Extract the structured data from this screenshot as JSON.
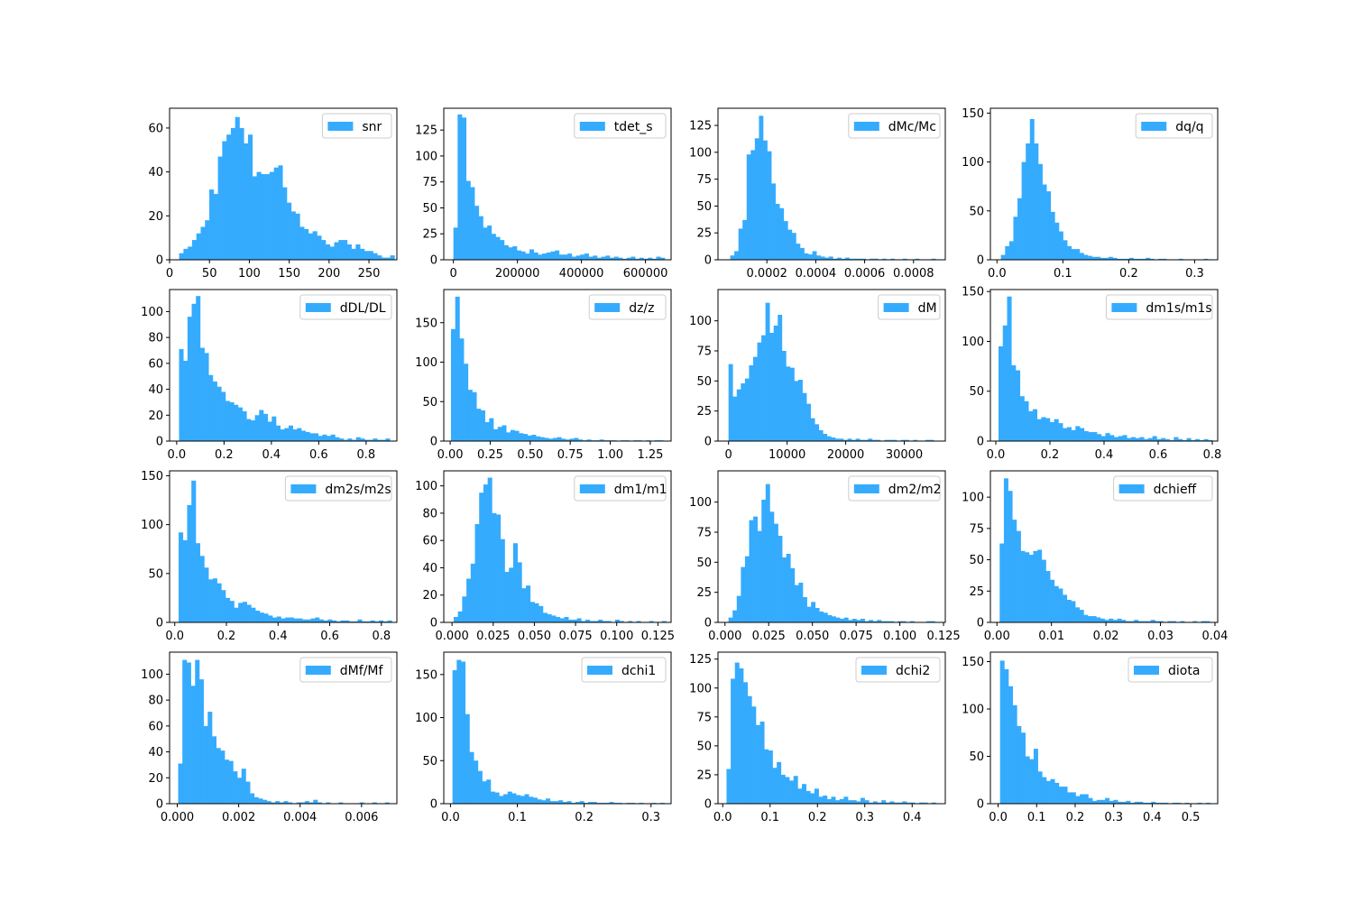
{
  "style": {
    "bar_color": "#35ABFE",
    "axis_color": "#000000",
    "legend_border": "#CCCCCC"
  },
  "chart_data": [
    {
      "type": "bar",
      "legend": "snr",
      "legend_placement": "upper-right",
      "grid": false,
      "xlim": [
        0,
        285
      ],
      "ylim": [
        0,
        69
      ],
      "bin_range": [
        12,
        282
      ],
      "values": [
        3,
        5,
        6,
        9,
        12,
        15,
        18,
        32,
        30,
        47,
        54,
        57,
        60,
        65,
        60,
        53,
        57,
        38,
        40,
        39,
        39,
        40,
        42,
        43,
        33,
        26,
        22,
        21,
        15,
        14,
        12,
        13,
        11,
        9,
        7,
        6,
        8,
        9,
        9,
        7,
        5,
        7,
        5,
        4,
        4,
        3,
        2,
        1,
        1,
        2
      ],
      "x_ticks": [
        0,
        50,
        100,
        150,
        200,
        250
      ],
      "y_ticks": [
        0,
        20,
        40,
        60
      ]
    },
    {
      "type": "bar",
      "legend": "tdet_s",
      "legend_placement": "upper-right",
      "grid": false,
      "xlim": [
        -30000,
        680000
      ],
      "ylim": [
        0,
        146
      ],
      "bin_range": [
        0,
        660000
      ],
      "values": [
        31,
        140,
        137,
        76,
        70,
        52,
        42,
        31,
        33,
        25,
        22,
        19,
        14,
        12,
        13,
        9,
        8,
        6,
        10,
        7,
        5,
        6,
        7,
        8,
        9,
        5,
        5,
        6,
        3,
        4,
        5,
        6,
        3,
        4,
        2,
        3,
        4,
        2,
        3,
        2,
        1,
        2,
        3,
        1,
        2,
        1,
        2,
        1,
        3,
        2
      ],
      "x_ticks": [
        0,
        200000,
        400000,
        600000
      ],
      "y_ticks": [
        0,
        25,
        50,
        75,
        100,
        125
      ]
    },
    {
      "type": "bar",
      "legend": "dMc/Mc",
      "legend_placement": "upper-right",
      "grid": false,
      "xlim": [
        0,
        0.00093
      ],
      "ylim": [
        0,
        141
      ],
      "bin_range": [
        5e-05,
        0.00089
      ],
      "values": [
        4,
        8,
        29,
        37,
        98,
        102,
        113,
        134,
        111,
        101,
        71,
        52,
        48,
        36,
        28,
        25,
        15,
        11,
        6,
        5,
        8,
        4,
        3,
        2,
        3,
        1,
        2,
        1,
        2,
        1,
        1,
        1,
        1,
        0,
        1,
        1,
        0,
        1,
        0,
        1,
        0,
        0,
        1,
        0,
        0,
        1,
        0,
        0,
        0,
        1
      ],
      "x_ticks": [
        0.0002,
        0.0004,
        0.0006,
        0.0008
      ],
      "y_ticks": [
        0,
        25,
        50,
        75,
        100,
        125
      ]
    },
    {
      "type": "bar",
      "legend": "dq/q",
      "legend_placement": "upper-right",
      "grid": false,
      "xlim": [
        -0.01,
        0.335
      ],
      "ylim": [
        0,
        155
      ],
      "bin_range": [
        0.006,
        0.32
      ],
      "values": [
        5,
        14,
        19,
        44,
        63,
        100,
        119,
        144,
        119,
        98,
        77,
        70,
        49,
        38,
        29,
        20,
        14,
        11,
        11,
        7,
        5,
        4,
        3,
        3,
        2,
        2,
        3,
        2,
        1,
        1,
        1,
        2,
        1,
        1,
        1,
        2,
        1,
        0,
        1,
        1,
        0,
        0,
        0,
        1,
        0,
        0,
        0,
        0,
        0,
        1
      ],
      "x_ticks": [
        0.0,
        0.1,
        0.2,
        0.3
      ],
      "y_ticks": [
        0,
        50,
        100,
        150
      ]
    },
    {
      "type": "bar",
      "legend": "dDL/DL",
      "legend_placement": "upper-right",
      "grid": false,
      "xlim": [
        -0.03,
        0.93
      ],
      "ylim": [
        0,
        117
      ],
      "bin_range": [
        0.01,
        0.9
      ],
      "values": [
        71,
        62,
        96,
        106,
        112,
        72,
        68,
        51,
        46,
        42,
        38,
        31,
        30,
        28,
        26,
        23,
        17,
        16,
        20,
        24,
        21,
        15,
        19,
        12,
        9,
        10,
        12,
        9,
        10,
        8,
        7,
        6,
        6,
        4,
        5,
        4,
        5,
        3,
        2,
        1,
        2,
        1,
        3,
        2,
        1,
        1,
        2,
        1,
        1,
        2
      ],
      "x_ticks": [
        0.0,
        0.2,
        0.4,
        0.6,
        0.8
      ],
      "y_ticks": [
        0,
        20,
        40,
        60,
        80,
        100
      ]
    },
    {
      "type": "bar",
      "legend": "dz/z",
      "legend_placement": "upper-right",
      "grid": false,
      "xlim": [
        -0.04,
        1.38
      ],
      "ylim": [
        0,
        192
      ],
      "bin_range": [
        0.005,
        1.33
      ],
      "values": [
        142,
        183,
        130,
        98,
        65,
        62,
        41,
        39,
        24,
        29,
        15,
        18,
        20,
        11,
        14,
        13,
        10,
        9,
        7,
        8,
        6,
        5,
        4,
        3,
        4,
        5,
        3,
        2,
        3,
        4,
        2,
        1,
        2,
        1,
        1,
        2,
        1,
        1,
        1,
        0,
        1,
        1,
        0,
        1,
        1,
        0,
        1,
        0,
        1,
        1
      ],
      "x_ticks": [
        0.0,
        0.25,
        0.5,
        0.75,
        1.0,
        1.25
      ],
      "y_ticks": [
        0,
        50,
        100,
        150
      ]
    },
    {
      "type": "bar",
      "legend": "dM",
      "legend_placement": "upper-right",
      "grid": false,
      "xlim": [
        -1800,
        37000
      ],
      "ylim": [
        0,
        126
      ],
      "bin_range": [
        0,
        35000
      ],
      "values": [
        64,
        37,
        43,
        48,
        52,
        63,
        70,
        82,
        88,
        115,
        90,
        96,
        105,
        75,
        62,
        61,
        50,
        51,
        40,
        31,
        19,
        14,
        9,
        6,
        4,
        3,
        2,
        2,
        1,
        2,
        1,
        2,
        1,
        1,
        2,
        1,
        1,
        0,
        1,
        1,
        1,
        0,
        1,
        1,
        0,
        1,
        0,
        0,
        1,
        1
      ],
      "x_ticks": [
        0,
        10000,
        20000,
        30000
      ],
      "y_ticks": [
        0,
        25,
        50,
        75,
        100
      ]
    },
    {
      "type": "bar",
      "legend": "dm1s/m1s",
      "legend_placement": "upper-right",
      "grid": false,
      "xlim": [
        -0.02,
        0.82
      ],
      "ylim": [
        0,
        152
      ],
      "bin_range": [
        0.01,
        0.8
      ],
      "values": [
        95,
        116,
        145,
        76,
        71,
        45,
        40,
        30,
        32,
        22,
        24,
        23,
        19,
        22,
        18,
        13,
        14,
        11,
        15,
        13,
        10,
        9,
        9,
        7,
        5,
        8,
        6,
        4,
        5,
        6,
        3,
        4,
        3,
        4,
        2,
        3,
        5,
        2,
        3,
        2,
        1,
        4,
        2,
        1,
        3,
        1,
        2,
        1,
        2,
        1
      ],
      "x_ticks": [
        0.0,
        0.2,
        0.4,
        0.6,
        0.8
      ],
      "y_ticks": [
        0,
        50,
        100,
        150
      ]
    },
    {
      "type": "bar",
      "legend": "dm2s/m2s",
      "legend_placement": "upper-right",
      "grid": false,
      "xlim": [
        -0.02,
        0.86
      ],
      "ylim": [
        0,
        155
      ],
      "bin_range": [
        0.015,
        0.84
      ],
      "values": [
        92,
        84,
        120,
        145,
        81,
        68,
        56,
        44,
        45,
        40,
        33,
        25,
        22,
        15,
        20,
        21,
        18,
        15,
        12,
        10,
        9,
        7,
        5,
        6,
        4,
        5,
        5,
        4,
        4,
        3,
        3,
        4,
        5,
        3,
        2,
        3,
        2,
        1,
        2,
        2,
        1,
        1,
        3,
        1,
        1,
        2,
        1,
        2,
        1,
        2
      ],
      "x_ticks": [
        0.0,
        0.2,
        0.4,
        0.6,
        0.8
      ],
      "y_ticks": [
        0,
        50,
        100,
        150
      ]
    },
    {
      "type": "bar",
      "legend": "dm1/m1",
      "legend_placement": "upper-right",
      "grid": false,
      "xlim": [
        -0.005,
        0.133
      ],
      "ylim": [
        0,
        111
      ],
      "bin_range": [
        0.001,
        0.13
      ],
      "values": [
        4,
        8,
        19,
        32,
        43,
        72,
        95,
        101,
        106,
        80,
        79,
        61,
        37,
        40,
        58,
        44,
        25,
        27,
        15,
        14,
        12,
        7,
        6,
        5,
        4,
        3,
        4,
        2,
        2,
        3,
        1,
        2,
        1,
        1,
        2,
        1,
        1,
        0,
        2,
        1,
        0,
        1,
        0,
        1,
        0,
        0,
        1,
        0,
        0,
        1
      ],
      "x_ticks": [
        0.0,
        0.025,
        0.05,
        0.075,
        0.1,
        0.125
      ],
      "y_ticks": [
        0,
        20,
        40,
        60,
        80,
        100
      ]
    },
    {
      "type": "bar",
      "legend": "dm2/m2",
      "legend_placement": "upper-right",
      "grid": false,
      "xlim": [
        -0.004,
        0.126
      ],
      "ylim": [
        0,
        126
      ],
      "bin_range": [
        0.002,
        0.12
      ],
      "values": [
        4,
        10,
        22,
        46,
        55,
        85,
        88,
        76,
        102,
        115,
        92,
        82,
        72,
        54,
        57,
        45,
        31,
        33,
        21,
        13,
        17,
        12,
        9,
        8,
        6,
        5,
        4,
        3,
        4,
        2,
        3,
        2,
        3,
        1,
        2,
        1,
        2,
        1,
        1,
        1,
        0,
        1,
        1,
        0,
        1,
        0,
        0,
        0,
        1,
        1
      ],
      "x_ticks": [
        0.0,
        0.025,
        0.05,
        0.075,
        0.1,
        0.125
      ],
      "y_ticks": [
        0,
        25,
        50,
        75,
        100
      ]
    },
    {
      "type": "bar",
      "legend": "dchieff",
      "legend_placement": "upper-right",
      "grid": false,
      "xlim": [
        -0.0012,
        0.0405
      ],
      "ylim": [
        0,
        121
      ],
      "bin_range": [
        0.0005,
        0.039
      ],
      "values": [
        63,
        115,
        105,
        82,
        73,
        57,
        56,
        54,
        57,
        58,
        50,
        41,
        34,
        29,
        27,
        22,
        18,
        17,
        12,
        10,
        6,
        5,
        5,
        4,
        3,
        2,
        3,
        2,
        3,
        2,
        1,
        1,
        2,
        1,
        1,
        1,
        2,
        1,
        1,
        0,
        1,
        1,
        0,
        1,
        0,
        0,
        1,
        0,
        1,
        1
      ],
      "x_ticks": [
        0.0,
        0.01,
        0.02,
        0.03,
        0.04
      ],
      "y_ticks": [
        0,
        25,
        50,
        75,
        100
      ]
    },
    {
      "type": "bar",
      "legend": "dMf/Mf",
      "legend_placement": "upper-right",
      "grid": false,
      "xlim": [
        -0.00025,
        0.00715
      ],
      "ylim": [
        0,
        117
      ],
      "bin_range": [
        3e-05,
        0.0069
      ],
      "values": [
        31,
        111,
        109,
        91,
        111,
        96,
        60,
        71,
        52,
        43,
        41,
        34,
        33,
        25,
        20,
        27,
        17,
        8,
        5,
        4,
        3,
        2,
        1,
        2,
        1,
        2,
        1,
        0,
        1,
        1,
        2,
        1,
        3,
        1,
        0,
        1,
        0,
        0,
        1,
        0,
        0,
        0,
        0,
        1,
        0,
        0,
        1,
        0,
        0,
        1
      ],
      "x_ticks": [
        0.0,
        0.002,
        0.004,
        0.006
      ],
      "y_ticks": [
        0,
        20,
        40,
        60,
        80,
        100
      ]
    },
    {
      "type": "bar",
      "legend": "dchi1",
      "legend_placement": "upper-right",
      "grid": false,
      "xlim": [
        -0.01,
        0.33
      ],
      "ylim": [
        0,
        176
      ],
      "bin_range": [
        0.003,
        0.32
      ],
      "values": [
        155,
        167,
        165,
        104,
        60,
        50,
        38,
        26,
        28,
        14,
        13,
        9,
        11,
        14,
        12,
        10,
        9,
        11,
        8,
        7,
        5,
        4,
        6,
        3,
        3,
        4,
        2,
        3,
        1,
        2,
        3,
        1,
        2,
        2,
        1,
        1,
        1,
        2,
        1,
        1,
        0,
        1,
        1,
        0,
        1,
        0,
        0,
        1,
        0,
        1
      ],
      "x_ticks": [
        0.0,
        0.1,
        0.2,
        0.3
      ],
      "y_ticks": [
        0,
        50,
        100,
        150
      ]
    },
    {
      "type": "bar",
      "legend": "dchi2",
      "legend_placement": "upper-right",
      "grid": false,
      "xlim": [
        -0.01,
        0.47
      ],
      "ylim": [
        0,
        131
      ],
      "bin_range": [
        0.008,
        0.45
      ],
      "values": [
        30,
        108,
        122,
        117,
        105,
        93,
        84,
        68,
        71,
        47,
        46,
        31,
        36,
        25,
        23,
        20,
        24,
        13,
        17,
        11,
        9,
        13,
        6,
        7,
        4,
        6,
        3,
        4,
        6,
        3,
        3,
        2,
        5,
        3,
        1,
        2,
        1,
        3,
        1,
        2,
        1,
        1,
        2,
        1,
        1,
        0,
        1,
        1,
        0,
        1
      ],
      "x_ticks": [
        0.0,
        0.1,
        0.2,
        0.3,
        0.4
      ],
      "y_ticks": [
        0,
        25,
        50,
        75,
        100,
        125
      ]
    },
    {
      "type": "bar",
      "legend": "diota",
      "legend_placement": "upper-right",
      "grid": false,
      "xlim": [
        -0.02,
        0.57
      ],
      "ylim": [
        0,
        160
      ],
      "bin_range": [
        0.005,
        0.55
      ],
      "values": [
        151,
        142,
        124,
        104,
        82,
        75,
        50,
        47,
        58,
        34,
        28,
        24,
        26,
        22,
        18,
        18,
        12,
        12,
        8,
        10,
        10,
        6,
        3,
        4,
        4,
        6,
        3,
        4,
        2,
        2,
        3,
        1,
        2,
        2,
        1,
        1,
        2,
        1,
        1,
        1,
        0,
        1,
        1,
        0,
        1,
        0,
        0,
        1,
        0,
        1
      ],
      "x_ticks": [
        0.0,
        0.1,
        0.2,
        0.3,
        0.4,
        0.5
      ],
      "y_ticks": [
        0,
        50,
        100,
        150
      ]
    }
  ]
}
